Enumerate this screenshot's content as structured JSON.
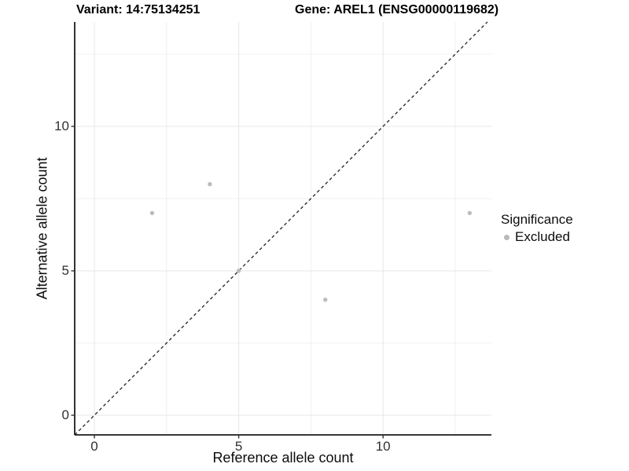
{
  "header": {
    "variant_label": "Variant: 14:75134251",
    "gene_label": "Gene: AREL1 (ENSG00000119682)"
  },
  "chart_data": {
    "type": "scatter",
    "title_left": "Variant: 14:75134251",
    "title_right": "Gene: AREL1 (ENSG00000119682)",
    "xlabel": "Reference allele count",
    "ylabel": "Alternative allele count",
    "xlim": [
      -0.68,
      13.75
    ],
    "ylim": [
      -0.68,
      13.6
    ],
    "xticks": [
      0,
      5,
      10
    ],
    "yticks": [
      0,
      5,
      10
    ],
    "minor_gridlines": [
      2.5,
      7.5,
      12.5
    ],
    "major_gridlines": [
      0,
      5,
      10
    ],
    "grid": true,
    "identity_line": {
      "style": "dashed",
      "slope": 1,
      "intercept": 0
    },
    "series": [
      {
        "name": "Excluded",
        "color": "#bcbcbc",
        "points": [
          [
            2,
            7
          ],
          [
            4,
            8
          ],
          [
            5,
            5
          ],
          [
            8,
            4
          ],
          [
            13,
            7
          ]
        ]
      }
    ],
    "legend": {
      "title": "Significance",
      "position": "right",
      "items": [
        {
          "label": "Excluded",
          "color": "#b9b9b9"
        }
      ]
    }
  },
  "colors": {
    "background": "#ffffff",
    "grid_major": "#e7e7e7",
    "grid_minor": "#f0f0f0",
    "axis_line": "#1b1b1b",
    "tick_mark": "#333333",
    "tick_label": "#303030",
    "point": "#bcbcbc",
    "identity_line": "#222222"
  }
}
